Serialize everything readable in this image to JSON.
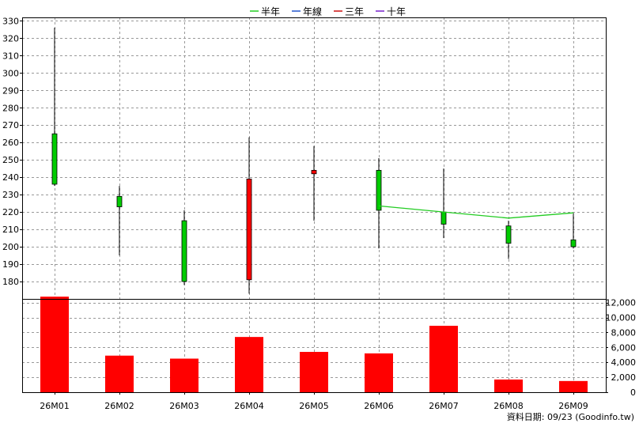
{
  "legend": [
    {
      "label": "半年",
      "color": "#22cc22"
    },
    {
      "label": "年線",
      "color": "#2255cc"
    },
    {
      "label": "三年",
      "color": "#cc1111"
    },
    {
      "label": "十年",
      "color": "#7722cc"
    }
  ],
  "footer": "資料日期: 09/23  (Goodinfo.tw)",
  "colors": {
    "up": "#ff0000",
    "down": "#00cc00",
    "volume": "#ff0000",
    "grid": "#999999"
  },
  "chart_data": {
    "type": "candlestick",
    "categories": [
      "26M01",
      "26M02",
      "26M03",
      "26M04",
      "26M05",
      "26M06",
      "26M07",
      "26M08",
      "26M09"
    ],
    "price": {
      "ylim": [
        170,
        332
      ],
      "ticks": [
        180,
        190,
        200,
        210,
        220,
        230,
        240,
        250,
        260,
        270,
        280,
        290,
        300,
        310,
        320,
        330
      ],
      "candles": [
        {
          "open": 265,
          "high": 326,
          "low": 235,
          "close": 236
        },
        {
          "open": 229,
          "high": 235,
          "low": 195,
          "close": 223
        },
        {
          "open": 215,
          "high": 221,
          "low": 178,
          "close": 180
        },
        {
          "open": 181,
          "high": 263,
          "low": 173,
          "close": 239
        },
        {
          "open": 242,
          "high": 258,
          "low": 215,
          "close": 244
        },
        {
          "open": 244,
          "high": 251,
          "low": 199,
          "close": 221
        },
        {
          "open": 220,
          "high": 245,
          "low": 205,
          "close": 213
        },
        {
          "open": 212,
          "high": 215,
          "low": 193,
          "close": 202
        },
        {
          "open": 204,
          "high": 219,
          "low": 199,
          "close": 200
        }
      ],
      "series": [
        {
          "name": "半年",
          "color": "#22cc22",
          "start_index": 5,
          "values": [
            223.5,
            220,
            216.5,
            219.5
          ]
        }
      ]
    },
    "volume": {
      "ylim": [
        0,
        12500
      ],
      "ticks": [
        0,
        2000,
        4000,
        6000,
        8000,
        10000,
        12000
      ],
      "tick_labels": [
        "0",
        "2,000",
        "4,000",
        "6,000",
        "8,000",
        "10,000",
        "12,000"
      ],
      "values": [
        12800,
        4900,
        4500,
        7400,
        5400,
        5200,
        8900,
        1700,
        1500
      ]
    }
  }
}
